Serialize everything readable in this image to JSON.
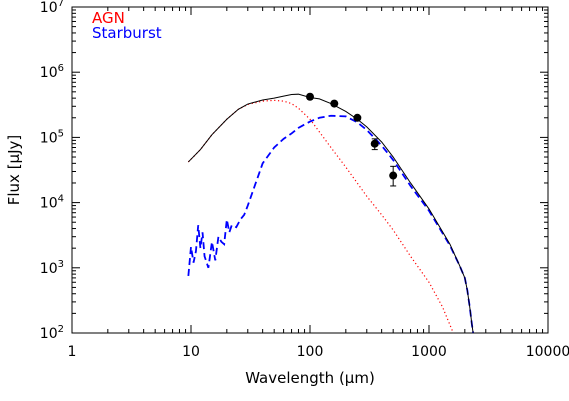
{
  "chart_data": {
    "type": "line",
    "title": "",
    "xlabel": "Wavelength (μm)",
    "ylabel": "Flux [μJy]",
    "xscale": "log",
    "yscale": "log",
    "xlim": [
      1,
      10000
    ],
    "ylim": [
      100,
      10000000
    ],
    "x_ticks": [
      {
        "value": 1,
        "label": "1"
      },
      {
        "value": 10,
        "label": "10"
      },
      {
        "value": 100,
        "label": "100"
      },
      {
        "value": 1000,
        "label": "1000"
      },
      {
        "value": 10000,
        "label": "10000"
      }
    ],
    "y_ticks": [
      {
        "value": 100,
        "base": "10",
        "exp": "2"
      },
      {
        "value": 1000,
        "base": "10",
        "exp": "3"
      },
      {
        "value": 10000,
        "base": "10",
        "exp": "4"
      },
      {
        "value": 100000,
        "base": "10",
        "exp": "5"
      },
      {
        "value": 1000000,
        "base": "10",
        "exp": "6"
      },
      {
        "value": 10000000,
        "base": "10",
        "exp": "7"
      }
    ],
    "grid": false,
    "legend_position": "top-left",
    "series": [
      {
        "name": "AGN",
        "color": "#ff0000",
        "style": "dotted",
        "x": [
          9.5,
          12,
          15,
          20,
          25,
          30,
          40,
          50,
          60,
          70,
          80,
          100,
          150,
          200,
          300,
          400,
          500,
          700,
          1000,
          1300,
          1600
        ],
        "y": [
          42000,
          65000,
          110000,
          190000,
          270000,
          320000,
          360000,
          370000,
          360000,
          330000,
          280000,
          190000,
          70000,
          35000,
          12500,
          6500,
          3800,
          1500,
          600,
          250,
          100
        ]
      },
      {
        "name": "Starburst",
        "color": "#0000ff",
        "style": "dashed",
        "x": [
          9.5,
          10,
          10.5,
          11,
          11.5,
          12,
          12.5,
          13,
          14,
          15,
          16,
          17,
          18,
          19,
          20,
          21,
          22,
          24,
          26,
          28,
          30,
          35,
          40,
          50,
          60,
          70,
          80,
          100,
          120,
          150,
          200,
          250,
          300,
          400,
          500,
          700,
          1000,
          1500,
          1800,
          2000,
          2100,
          2200,
          2300,
          2350
        ],
        "y": [
          750,
          2100,
          1200,
          1800,
          4500,
          2000,
          3500,
          1500,
          1000,
          2500,
          1300,
          3000,
          2500,
          2300,
          5500,
          3500,
          4500,
          4200,
          5500,
          6500,
          9000,
          20000,
          40000,
          70000,
          95000,
          115000,
          140000,
          175000,
          200000,
          215000,
          210000,
          170000,
          130000,
          75000,
          45000,
          18000,
          7500,
          2200,
          1100,
          700,
          450,
          250,
          130,
          100
        ]
      },
      {
        "name": "",
        "color": "#000000",
        "style": "solid",
        "x": [
          9.5,
          12,
          15,
          20,
          25,
          30,
          40,
          50,
          60,
          70,
          80,
          100,
          120,
          150,
          200,
          250,
          300,
          400,
          500,
          700,
          1000,
          1500,
          1800,
          2000,
          2100,
          2200,
          2300,
          2350
        ],
        "y": [
          42000,
          65000,
          110000,
          190000,
          270000,
          325000,
          375000,
          400000,
          430000,
          455000,
          460000,
          410000,
          390000,
          330000,
          250000,
          190000,
          145000,
          85000,
          50000,
          20000,
          8000,
          2300,
          1100,
          700,
          450,
          250,
          130,
          100
        ]
      }
    ],
    "observed_points": {
      "x": [
        100,
        160,
        250,
        350,
        500
      ],
      "y": [
        420000,
        330000,
        200000,
        80000,
        26000
      ],
      "err_low": [
        0,
        0,
        0,
        15000,
        8000
      ],
      "err_high": [
        0,
        0,
        0,
        15000,
        10000
      ]
    }
  }
}
